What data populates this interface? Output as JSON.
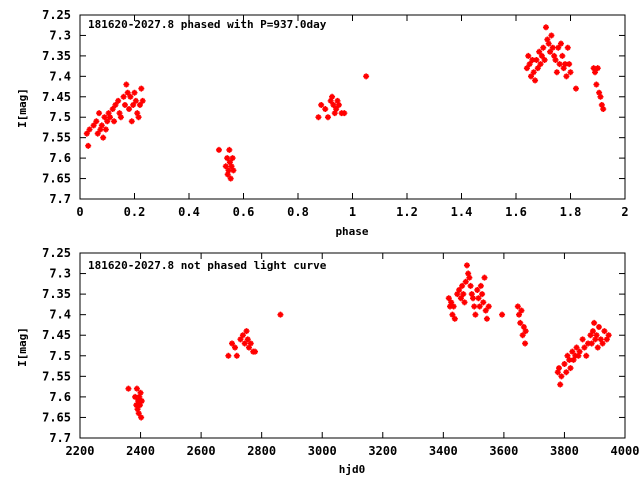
{
  "chart_data": [
    {
      "type": "scatter",
      "title": "181620-2027.8 phased with P=937.0day",
      "xlabel": "phase",
      "ylabel": "I[mag]",
      "xlim": [
        0,
        2
      ],
      "ylim": [
        7.25,
        7.7
      ],
      "y_inverted": true,
      "grid": false,
      "marker_color": "#ff0000",
      "xticks": [
        "0",
        "0.2",
        "0.4",
        "0.6",
        "0.8",
        "1",
        "1.2",
        "1.4",
        "1.6",
        "1.8",
        "2"
      ],
      "xtick_values": [
        0,
        0.2,
        0.4,
        0.6,
        0.8,
        1,
        1.2,
        1.4,
        1.6,
        1.8,
        2
      ],
      "yticks": [
        "7.25",
        "7.3",
        "7.35",
        "7.4",
        "7.45",
        "7.5",
        "7.55",
        "7.6",
        "7.65",
        "7.7"
      ],
      "ytick_values": [
        7.25,
        7.3,
        7.35,
        7.4,
        7.45,
        7.5,
        7.55,
        7.6,
        7.65,
        7.7
      ],
      "points": [
        [
          0.025,
          7.54
        ],
        [
          0.03,
          7.57
        ],
        [
          0.035,
          7.53
        ],
        [
          0.05,
          7.52
        ],
        [
          0.06,
          7.51
        ],
        [
          0.065,
          7.54
        ],
        [
          0.07,
          7.49
        ],
        [
          0.075,
          7.53
        ],
        [
          0.08,
          7.52
        ],
        [
          0.085,
          7.55
        ],
        [
          0.09,
          7.5
        ],
        [
          0.095,
          7.53
        ],
        [
          0.1,
          7.51
        ],
        [
          0.105,
          7.49
        ],
        [
          0.11,
          7.5
        ],
        [
          0.12,
          7.48
        ],
        [
          0.125,
          7.51
        ],
        [
          0.13,
          7.47
        ],
        [
          0.14,
          7.46
        ],
        [
          0.145,
          7.49
        ],
        [
          0.15,
          7.5
        ],
        [
          0.16,
          7.45
        ],
        [
          0.165,
          7.47
        ],
        [
          0.17,
          7.42
        ],
        [
          0.175,
          7.44
        ],
        [
          0.18,
          7.48
        ],
        [
          0.185,
          7.45
        ],
        [
          0.19,
          7.51
        ],
        [
          0.195,
          7.47
        ],
        [
          0.2,
          7.44
        ],
        [
          0.205,
          7.46
        ],
        [
          0.21,
          7.49
        ],
        [
          0.215,
          7.5
        ],
        [
          0.22,
          7.47
        ],
        [
          0.225,
          7.43
        ],
        [
          0.23,
          7.46
        ],
        [
          0.51,
          7.58
        ],
        [
          0.535,
          7.62
        ],
        [
          0.54,
          7.6
        ],
        [
          0.542,
          7.64
        ],
        [
          0.545,
          7.63
        ],
        [
          0.548,
          7.58
        ],
        [
          0.55,
          7.61
        ],
        [
          0.553,
          7.65
        ],
        [
          0.556,
          7.62
        ],
        [
          0.56,
          7.6
        ],
        [
          0.563,
          7.63
        ],
        [
          0.875,
          7.5
        ],
        [
          0.885,
          7.47
        ],
        [
          0.9,
          7.48
        ],
        [
          0.91,
          7.5
        ],
        [
          0.92,
          7.46
        ],
        [
          0.925,
          7.45
        ],
        [
          0.93,
          7.47
        ],
        [
          0.935,
          7.49
        ],
        [
          0.94,
          7.48
        ],
        [
          0.945,
          7.46
        ],
        [
          0.95,
          7.47
        ],
        [
          0.96,
          7.49
        ],
        [
          0.97,
          7.49
        ],
        [
          1.05,
          7.4
        ],
        [
          1.64,
          7.38
        ],
        [
          1.645,
          7.35
        ],
        [
          1.65,
          7.37
        ],
        [
          1.655,
          7.4
        ],
        [
          1.66,
          7.36
        ],
        [
          1.665,
          7.39
        ],
        [
          1.67,
          7.41
        ],
        [
          1.675,
          7.36
        ],
        [
          1.68,
          7.38
        ],
        [
          1.685,
          7.34
        ],
        [
          1.69,
          7.37
        ],
        [
          1.695,
          7.35
        ],
        [
          1.7,
          7.33
        ],
        [
          1.705,
          7.36
        ],
        [
          1.71,
          7.28
        ],
        [
          1.715,
          7.31
        ],
        [
          1.72,
          7.32
        ],
        [
          1.725,
          7.34
        ],
        [
          1.73,
          7.3
        ],
        [
          1.735,
          7.33
        ],
        [
          1.74,
          7.35
        ],
        [
          1.745,
          7.36
        ],
        [
          1.75,
          7.39
        ],
        [
          1.755,
          7.33
        ],
        [
          1.76,
          7.37
        ],
        [
          1.765,
          7.32
        ],
        [
          1.77,
          7.35
        ],
        [
          1.775,
          7.38
        ],
        [
          1.78,
          7.37
        ],
        [
          1.785,
          7.4
        ],
        [
          1.79,
          7.33
        ],
        [
          1.795,
          7.37
        ],
        [
          1.8,
          7.39
        ],
        [
          1.82,
          7.43
        ],
        [
          1.885,
          7.38
        ],
        [
          1.89,
          7.39
        ],
        [
          1.895,
          7.42
        ],
        [
          1.9,
          7.38
        ],
        [
          1.905,
          7.44
        ],
        [
          1.91,
          7.45
        ],
        [
          1.915,
          7.47
        ],
        [
          1.92,
          7.48
        ]
      ]
    },
    {
      "type": "scatter",
      "title": "181620-2027.8 not phased light curve",
      "xlabel": "hjd0",
      "ylabel": "I[mag]",
      "xlim": [
        2200,
        4000
      ],
      "ylim": [
        7.25,
        7.7
      ],
      "y_inverted": true,
      "grid": false,
      "marker_color": "#ff0000",
      "xticks": [
        "2200",
        "2400",
        "2600",
        "2800",
        "3000",
        "3200",
        "3400",
        "3600",
        "3800",
        "4000"
      ],
      "xtick_values": [
        2200,
        2400,
        2600,
        2800,
        3000,
        3200,
        3400,
        3600,
        3800,
        4000
      ],
      "yticks": [
        "7.25",
        "7.3",
        "7.35",
        "7.4",
        "7.45",
        "7.5",
        "7.55",
        "7.6",
        "7.65",
        "7.7"
      ],
      "ytick_values": [
        7.25,
        7.3,
        7.35,
        7.4,
        7.45,
        7.5,
        7.55,
        7.6,
        7.65,
        7.7
      ],
      "points": [
        [
          2360,
          7.58
        ],
        [
          2382,
          7.6
        ],
        [
          2386,
          7.62
        ],
        [
          2388,
          7.58
        ],
        [
          2390,
          7.63
        ],
        [
          2392,
          7.61
        ],
        [
          2394,
          7.64
        ],
        [
          2396,
          7.6
        ],
        [
          2398,
          7.62
        ],
        [
          2400,
          7.59
        ],
        [
          2402,
          7.65
        ],
        [
          2404,
          7.61
        ],
        [
          2690,
          7.5
        ],
        [
          2702,
          7.47
        ],
        [
          2712,
          7.48
        ],
        [
          2718,
          7.5
        ],
        [
          2730,
          7.46
        ],
        [
          2738,
          7.45
        ],
        [
          2744,
          7.47
        ],
        [
          2750,
          7.44
        ],
        [
          2754,
          7.46
        ],
        [
          2758,
          7.48
        ],
        [
          2764,
          7.47
        ],
        [
          2772,
          7.49
        ],
        [
          2778,
          7.49
        ],
        [
          2862,
          7.4
        ],
        [
          3418,
          7.36
        ],
        [
          3422,
          7.38
        ],
        [
          3426,
          7.37
        ],
        [
          3430,
          7.4
        ],
        [
          3434,
          7.38
        ],
        [
          3438,
          7.41
        ],
        [
          3446,
          7.35
        ],
        [
          3452,
          7.34
        ],
        [
          3458,
          7.36
        ],
        [
          3462,
          7.33
        ],
        [
          3466,
          7.35
        ],
        [
          3470,
          7.37
        ],
        [
          3474,
          7.32
        ],
        [
          3478,
          7.28
        ],
        [
          3482,
          7.3
        ],
        [
          3486,
          7.31
        ],
        [
          3490,
          7.33
        ],
        [
          3494,
          7.35
        ],
        [
          3498,
          7.36
        ],
        [
          3502,
          7.38
        ],
        [
          3506,
          7.4
        ],
        [
          3512,
          7.34
        ],
        [
          3516,
          7.36
        ],
        [
          3520,
          7.38
        ],
        [
          3524,
          7.33
        ],
        [
          3528,
          7.35
        ],
        [
          3532,
          7.37
        ],
        [
          3536,
          7.31
        ],
        [
          3540,
          7.39
        ],
        [
          3544,
          7.41
        ],
        [
          3550,
          7.38
        ],
        [
          3594,
          7.4
        ],
        [
          3646,
          7.38
        ],
        [
          3650,
          7.4
        ],
        [
          3654,
          7.42
        ],
        [
          3658,
          7.39
        ],
        [
          3662,
          7.45
        ],
        [
          3666,
          7.43
        ],
        [
          3670,
          7.47
        ],
        [
          3672,
          7.44
        ],
        [
          3778,
          7.54
        ],
        [
          3782,
          7.53
        ],
        [
          3786,
          7.57
        ],
        [
          3790,
          7.55
        ],
        [
          3800,
          7.52
        ],
        [
          3806,
          7.54
        ],
        [
          3810,
          7.5
        ],
        [
          3816,
          7.51
        ],
        [
          3820,
          7.53
        ],
        [
          3826,
          7.49
        ],
        [
          3830,
          7.51
        ],
        [
          3836,
          7.5
        ],
        [
          3840,
          7.48
        ],
        [
          3846,
          7.5
        ],
        [
          3850,
          7.49
        ],
        [
          3860,
          7.46
        ],
        [
          3866,
          7.48
        ],
        [
          3872,
          7.5
        ],
        [
          3878,
          7.47
        ],
        [
          3886,
          7.45
        ],
        [
          3890,
          7.47
        ],
        [
          3894,
          7.44
        ],
        [
          3898,
          7.42
        ],
        [
          3902,
          7.46
        ],
        [
          3906,
          7.45
        ],
        [
          3910,
          7.48
        ],
        [
          3914,
          7.43
        ],
        [
          3920,
          7.46
        ],
        [
          3926,
          7.47
        ],
        [
          3932,
          7.44
        ],
        [
          3940,
          7.46
        ],
        [
          3946,
          7.45
        ]
      ]
    }
  ]
}
